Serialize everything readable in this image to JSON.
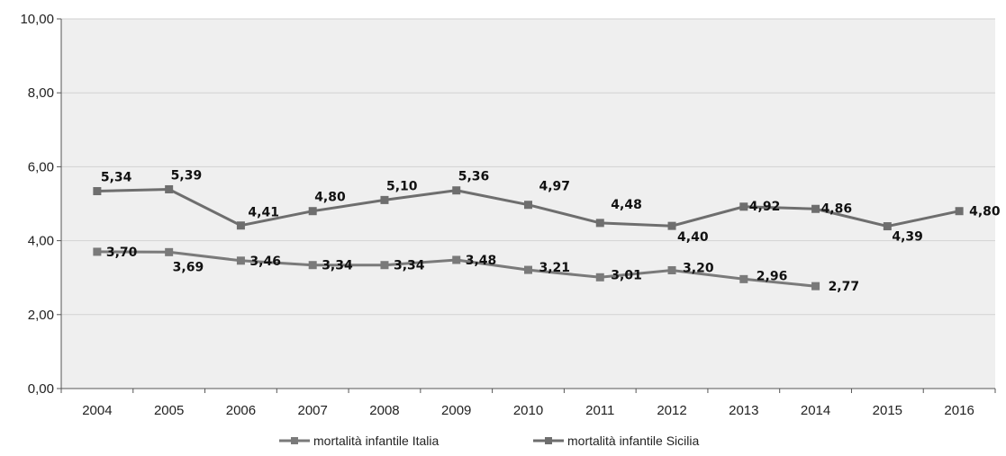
{
  "chart_data": {
    "type": "line",
    "categories": [
      "2004",
      "2005",
      "2006",
      "2007",
      "2008",
      "2009",
      "2010",
      "2011",
      "2012",
      "2013",
      "2014",
      "2015",
      "2016"
    ],
    "ylim": [
      0,
      10
    ],
    "yticks": [
      0,
      2,
      4,
      6,
      8,
      10
    ],
    "ytick_labels": [
      "0,00",
      "2,00",
      "4,00",
      "6,00",
      "8,00",
      "10,00"
    ],
    "grid": true,
    "legend_position": "bottom",
    "series": [
      {
        "name": "mortalità infantile Italia",
        "color": "#7a7a7a",
        "values": [
          3.7,
          3.69,
          3.46,
          3.34,
          3.34,
          3.48,
          3.21,
          3.01,
          3.2,
          2.96,
          2.77,
          null,
          null
        ],
        "labels": [
          "3,70",
          "3,69",
          "3,46",
          "3,34",
          "3,34",
          "3,48",
          "3,21",
          "3,01",
          "3,20",
          "2,96",
          "2,77",
          "",
          ""
        ]
      },
      {
        "name": "mortalità infantile Sicilia",
        "color": "#6e6e6e",
        "values": [
          5.34,
          5.39,
          4.41,
          4.8,
          5.1,
          5.36,
          4.97,
          4.48,
          4.4,
          4.92,
          4.86,
          4.39,
          4.8
        ],
        "labels": [
          "5,34",
          "5,39",
          "4,41",
          "4,80",
          "5,10",
          "5,36",
          "4,97",
          "4,48",
          "4,40",
          "4,92",
          "4,86",
          "4,39",
          "4,80"
        ]
      }
    ]
  }
}
